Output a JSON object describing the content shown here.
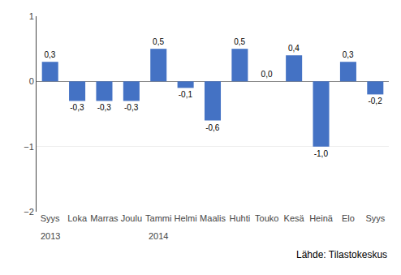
{
  "chart_data": {
    "type": "bar",
    "categories": [
      "Syys",
      "Loka",
      "Marras",
      "Joulu",
      "Tammi",
      "Helmi",
      "Maalis",
      "Huhti",
      "Touko",
      "Kesä",
      "Heinä",
      "Elo",
      "Syys"
    ],
    "values": [
      0.3,
      -0.3,
      -0.3,
      -0.3,
      0.5,
      -0.1,
      -0.6,
      0.5,
      0.0,
      0.4,
      -1.0,
      0.3,
      -0.2
    ],
    "value_labels": [
      "0,3",
      "-0,3",
      "-0,3",
      "-0,3",
      "0,5",
      "-0,1",
      "-0,6",
      "0,5",
      "0,0",
      "0,4",
      "-1,0",
      "0,3",
      "-0,2"
    ],
    "data_labels": true,
    "color": "#4472C4",
    "ylim": [
      -2,
      1
    ],
    "yticks": [
      -2,
      -1,
      0,
      1
    ],
    "grid": true,
    "annotations": [
      {
        "text": "2013",
        "x": 0
      },
      {
        "text": "2014",
        "x": 4
      },
      {
        "text": "Lähde: Tilastokeskus"
      }
    ]
  }
}
